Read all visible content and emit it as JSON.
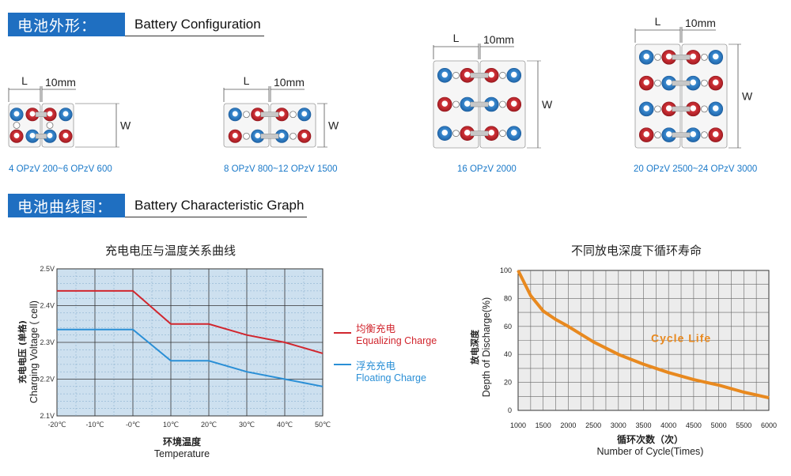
{
  "section_configuration": {
    "title_cn": "电池外形：",
    "title_en": "Battery Configuration"
  },
  "section_graph": {
    "title_cn": "电池曲线图：",
    "title_en": "Battery Characteristic Graph"
  },
  "dimension_labels": {
    "length": "L",
    "gap": "10mm",
    "width": "W"
  },
  "configurations": [
    {
      "label": "4 OPzV 200~6 OPzV 600"
    },
    {
      "label": "8 OPzV 800~12 OPzV 1500"
    },
    {
      "label": "16 OPzV 2000"
    },
    {
      "label": "20 OPzV 2500~24 OPzV 3000"
    }
  ],
  "colors": {
    "accent": "#1f6fc1",
    "equalizing": "#d1262e",
    "floating": "#2a8fd6",
    "cycle": "#e8891f",
    "chart_bg": "#cde0ef"
  },
  "chart_data": [
    {
      "type": "line",
      "title": "充电电压与温度关系曲线",
      "xlabel_cn": "环境温度",
      "xlabel": "Temperature",
      "ylabel_cn": "充电电压 (单格)",
      "ylabel": "Charging Voltage ( cell)",
      "x_ticks": [
        "-20℃",
        "-10℃",
        "-0℃",
        "10℃",
        "20℃",
        "30℃",
        "40℃",
        "50℃"
      ],
      "y_ticks": [
        "2.1V",
        "2.2V",
        "2.3V",
        "2.4V",
        "2.5V"
      ],
      "xlim": [
        -20,
        50
      ],
      "ylim": [
        2.1,
        2.5
      ],
      "grid": true,
      "series": [
        {
          "name_cn": "均衡充电",
          "name": "Equalizing Charge",
          "x": [
            -20,
            -20,
            0,
            10,
            20,
            30,
            40,
            50
          ],
          "y": [
            2.44,
            2.44,
            2.44,
            2.35,
            2.35,
            2.32,
            2.3,
            2.27
          ]
        },
        {
          "name_cn": "浮充充电",
          "name": "Floating Charge",
          "x": [
            -20,
            0,
            10,
            20,
            30,
            40,
            50
          ],
          "y": [
            2.335,
            2.335,
            2.25,
            2.25,
            2.22,
            2.2,
            2.18
          ]
        }
      ],
      "legend": "right"
    },
    {
      "type": "line",
      "title": "不同放电深度下循环寿命",
      "xlabel_cn": "循环次数（次）",
      "xlabel": "Number of Cycle(Times)",
      "ylabel_cn": "放电深度",
      "ylabel": "Depth of Discharge(%)",
      "x_ticks": [
        "1000",
        "1500",
        "2000",
        "2500",
        "3000",
        "3500",
        "4000",
        "4500",
        "5000",
        "5500",
        "6000"
      ],
      "y_ticks": [
        "0",
        "20",
        "40",
        "60",
        "80",
        "100"
      ],
      "xlim": [
        1000,
        6000
      ],
      "ylim": [
        0,
        100
      ],
      "grid": true,
      "series": [
        {
          "name": "Cycle Life",
          "x": [
            1000,
            1250,
            1500,
            1750,
            2000,
            2500,
            3000,
            3500,
            4000,
            4500,
            5000,
            5500,
            6000
          ],
          "y": [
            100,
            82,
            71,
            65,
            60,
            49,
            40,
            33,
            27,
            22,
            18,
            13,
            9
          ]
        }
      ]
    }
  ]
}
